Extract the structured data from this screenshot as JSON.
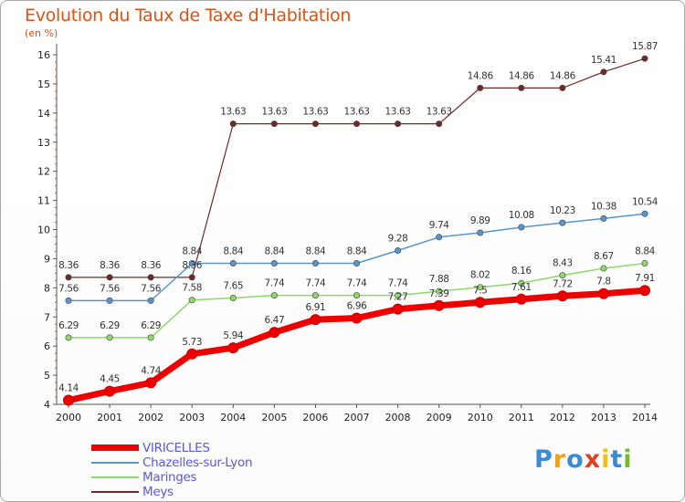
{
  "title": "Evolution du Taux de Taxe d'Habitation",
  "unit_label": "(en %)",
  "logo": {
    "letters": [
      "P",
      "r",
      "o",
      "x",
      "i",
      "t",
      "i"
    ],
    "colors": [
      "#3a8ad6",
      "#f0a020",
      "#3a8ad6",
      "#e04020",
      "#f0c020",
      "#3a8ad6",
      "#7ab830"
    ]
  },
  "chart_data": {
    "type": "line",
    "x": [
      "2000",
      "2001",
      "2002",
      "2003",
      "2004",
      "2005",
      "2006",
      "2007",
      "2008",
      "2009",
      "2010",
      "2011",
      "2012",
      "2013",
      "2014"
    ],
    "ylim": [
      4,
      16
    ],
    "yticks": [
      "4",
      "5",
      "6",
      "7",
      "8",
      "9",
      "10",
      "11",
      "12",
      "13",
      "14",
      "15",
      "16"
    ],
    "grid": false,
    "legend_placement": "bottom-left",
    "series": [
      {
        "name": "VIRICELLES",
        "color": "#ee0000",
        "width": 7,
        "values": [
          4.14,
          4.45,
          4.74,
          5.73,
          5.94,
          6.47,
          6.91,
          6.96,
          7.27,
          7.39,
          7.5,
          7.61,
          7.72,
          7.8,
          7.91
        ],
        "labels": [
          "4.14",
          "4.45",
          "4.74",
          "5.73",
          "5.94",
          "6.47",
          "6.91",
          "6.96",
          "7.27",
          "7.39",
          "7.5",
          "7.61",
          "7.72",
          "7.8",
          "7.91"
        ]
      },
      {
        "name": "Chazelles-sur-Lyon",
        "color": "#5896cc",
        "width": 1.5,
        "values": [
          7.56,
          7.56,
          7.56,
          8.84,
          8.84,
          8.84,
          8.84,
          8.84,
          9.28,
          9.74,
          9.89,
          10.08,
          10.23,
          10.38,
          10.54
        ],
        "labels": [
          "7.56",
          "7.56",
          "7.56",
          "8.84",
          "8.84",
          "8.84",
          "8.84",
          "8.84",
          "9.28",
          "9.74",
          "9.89",
          "10.08",
          "10.23",
          "10.38",
          "10.54"
        ]
      },
      {
        "name": "Maringes",
        "color": "#8fd86a",
        "width": 1.5,
        "values": [
          6.29,
          6.29,
          6.29,
          7.58,
          7.65,
          7.74,
          7.74,
          7.74,
          7.74,
          7.88,
          8.02,
          8.16,
          8.43,
          8.67,
          8.84
        ],
        "labels": [
          "6.29",
          "6.29",
          "6.29",
          "7.58",
          "7.65",
          "7.74",
          "7.74",
          "7.74",
          "7.74",
          "7.88",
          "8.02",
          "8.16",
          "8.43",
          "8.67",
          "8.84"
        ]
      },
      {
        "name": "Meys",
        "color": "#6e2a2a",
        "width": 1.2,
        "values": [
          8.36,
          8.36,
          8.36,
          8.36,
          13.63,
          13.63,
          13.63,
          13.63,
          13.63,
          13.63,
          14.86,
          14.86,
          14.86,
          15.41,
          15.87
        ],
        "labels": [
          "8.36",
          "8.36",
          "8.36",
          "8.36",
          "13.63",
          "13.63",
          "13.63",
          "13.63",
          "13.63",
          "13.63",
          "14.86",
          "14.86",
          "14.86",
          "15.41",
          "15.87"
        ]
      }
    ]
  }
}
